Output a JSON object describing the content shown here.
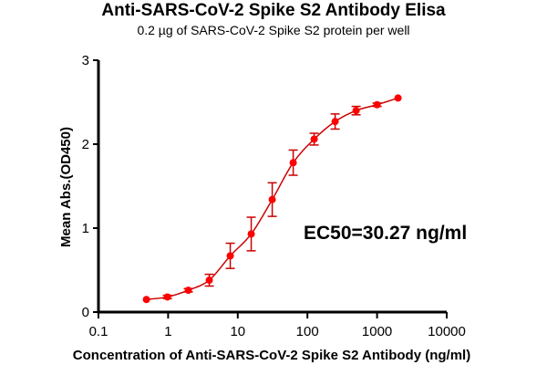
{
  "chart_data": {
    "type": "scatter",
    "title": "Anti-SARS-CoV-2 Spike S2 Antibody Elisa",
    "subtitle": "0.2 µg of SARS-CoV-2 Spike S2 protein per well",
    "xlabel": "Concentration of Anti-SARS-CoV-2 Spike S2 Antibody (ng/ml)",
    "ylabel": "Mean Abs.(OD450)",
    "xscale": "log",
    "xlim": [
      0.1,
      10000
    ],
    "ylim": [
      0,
      3
    ],
    "xticks": [
      "0.1",
      "1",
      "10",
      "100",
      "1000",
      "10000"
    ],
    "yticks": [
      "0",
      "1",
      "2",
      "3"
    ],
    "grid": false,
    "legend": null,
    "annotation": "EC50=30.27 ng/ml",
    "series": [
      {
        "name": "Anti-SARS-CoV-2 Spike S2 Antibody",
        "color": "#ff0000",
        "line_color": "#cc0000",
        "fit": "4-parameter logistic",
        "x": [
          0.488,
          0.977,
          1.95,
          3.9,
          7.8,
          15.6,
          31.25,
          62.5,
          125,
          250,
          500,
          1000,
          2000
        ],
        "y": [
          0.15,
          0.18,
          0.26,
          0.38,
          0.67,
          0.93,
          1.34,
          1.78,
          2.06,
          2.27,
          2.4,
          2.47,
          2.55
        ],
        "error": [
          0.01,
          0.02,
          0.02,
          0.07,
          0.15,
          0.2,
          0.2,
          0.15,
          0.07,
          0.09,
          0.05,
          0.02,
          0.01
        ]
      }
    ]
  }
}
